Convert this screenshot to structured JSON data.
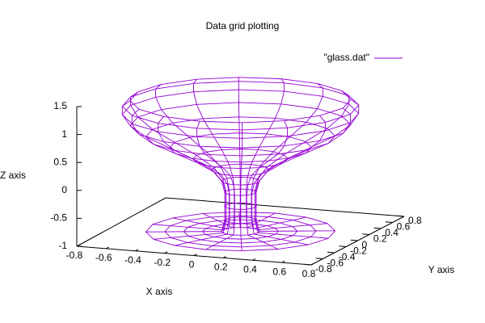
{
  "chart_data": {
    "type": "surface3d",
    "title": "Data grid plotting",
    "xlabel": "X axis",
    "ylabel": "Y axis",
    "zlabel": "Z axis",
    "xlim": [
      -0.8,
      0.8
    ],
    "ylim": [
      -0.8,
      0.8
    ],
    "zlim": [
      -1,
      1.5
    ],
    "xticks": [
      -0.8,
      -0.6,
      -0.4,
      -0.2,
      0,
      0.2,
      0.4,
      0.6,
      0.8
    ],
    "yticks": [
      -0.8,
      -0.6,
      -0.4,
      -0.2,
      0,
      0.2,
      0.4,
      0.6,
      0.8
    ],
    "zticks": [
      -1,
      -0.5,
      0,
      0.5,
      1,
      1.5
    ],
    "legend": "top-right",
    "series": [
      {
        "name": "\"glass.dat\"",
        "color": "#9400d3",
        "segments": 16,
        "r": [
          0.6,
          0.48,
          0.36,
          0.24,
          0.12,
          0.1,
          0.1,
          0.1,
          0.12,
          0.18,
          0.3,
          0.45,
          0.6,
          0.7,
          0.75,
          0.75,
          0.7
        ],
        "z": [
          -1,
          -1,
          -1,
          -1,
          -1,
          -0.8,
          -0.55,
          -0.3,
          -0.1,
          0.1,
          0.3,
          0.5,
          0.7,
          0.9,
          1.1,
          1.25,
          1.35
        ]
      }
    ]
  }
}
